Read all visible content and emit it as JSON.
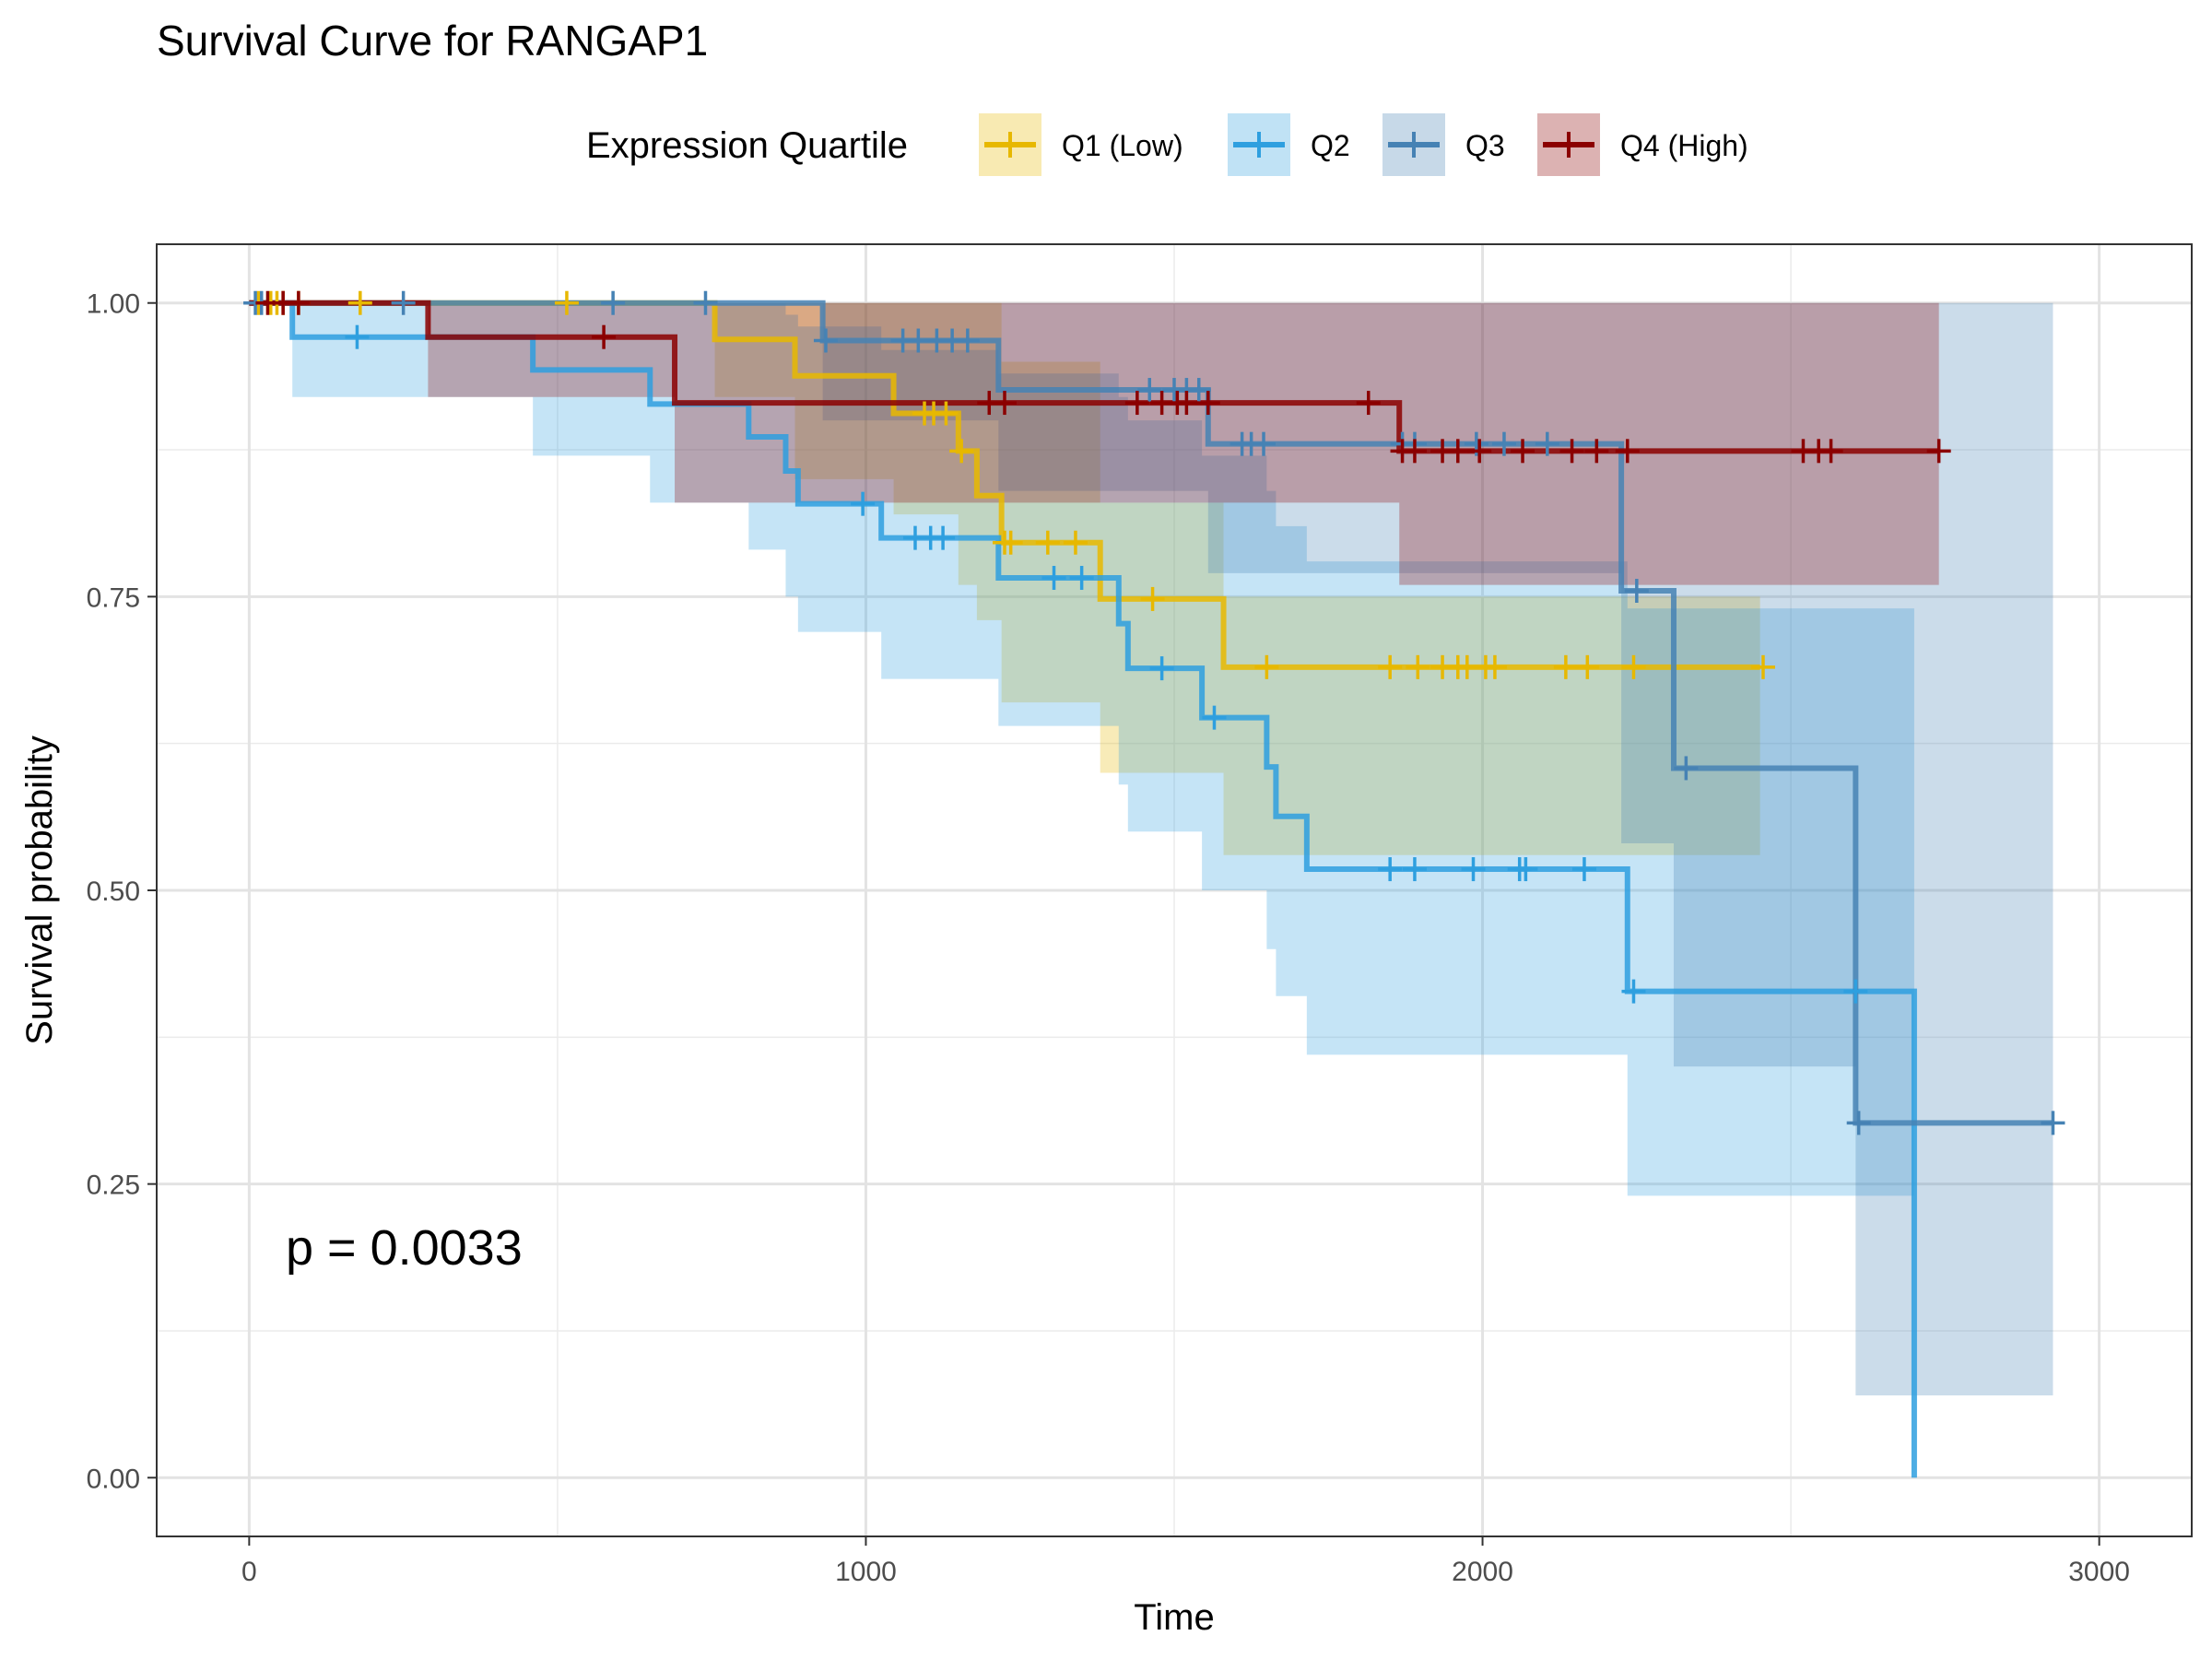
{
  "chart_data": {
    "type": "line",
    "subtype": "kaplan-meier",
    "title": "Survival Curve for RANGAP1",
    "xlabel": "Time",
    "ylabel": "Survival probability",
    "xlim": [
      -150,
      3150
    ],
    "ylim": [
      -0.05,
      1.05
    ],
    "x_ticks": [
      0,
      1000,
      2000,
      3000
    ],
    "y_ticks": [
      0.0,
      0.25,
      0.5,
      0.75,
      1.0
    ],
    "y_tick_labels": [
      "0.00",
      "0.25",
      "0.50",
      "0.75",
      "1.00"
    ],
    "grid": true,
    "legend": {
      "title": "Expression Quartile",
      "position": "top"
    },
    "annotation": "p = 0.0033",
    "series": [
      {
        "name": "Q1 (Low)",
        "color": "#E7B800",
        "curve": [
          [
            0,
            1.0
          ],
          [
            755,
            1.0
          ],
          [
            755,
            0.969
          ],
          [
            885,
            0.969
          ],
          [
            885,
            0.938
          ],
          [
            1045,
            0.938
          ],
          [
            1045,
            0.906
          ],
          [
            1150,
            0.906
          ],
          [
            1150,
            0.874
          ],
          [
            1180,
            0.874
          ],
          [
            1180,
            0.836
          ],
          [
            1220,
            0.836
          ],
          [
            1220,
            0.796
          ],
          [
            1380,
            0.796
          ],
          [
            1380,
            0.748
          ],
          [
            1580,
            0.748
          ],
          [
            1580,
            0.69
          ],
          [
            2450,
            0.69
          ]
        ],
        "upper": [
          [
            755,
            1.0
          ],
          [
            885,
            1.0
          ],
          [
            1045,
            1.0
          ],
          [
            1150,
            1.0
          ],
          [
            1180,
            1.0
          ],
          [
            1220,
            0.95
          ],
          [
            1380,
            0.83
          ],
          [
            1580,
            0.75
          ],
          [
            2450,
            0.75
          ]
        ],
        "lower": [
          [
            755,
            0.92
          ],
          [
            885,
            0.85
          ],
          [
            1045,
            0.82
          ],
          [
            1150,
            0.76
          ],
          [
            1180,
            0.73
          ],
          [
            1220,
            0.66
          ],
          [
            1380,
            0.6
          ],
          [
            1580,
            0.53
          ],
          [
            2450,
            0.53
          ]
        ],
        "censor_times": [
          15,
          35,
          45,
          55,
          80,
          180,
          515,
          1095,
          1110,
          1130,
          1155,
          1225,
          1235,
          1295,
          1340,
          1465,
          1650,
          1850,
          1895,
          1935,
          1960,
          1975,
          2005,
          2020,
          2135,
          2170,
          2245,
          2455
        ]
      },
      {
        "name": "Q2",
        "color": "#2E9FDF",
        "curve": [
          [
            0,
            1.0
          ],
          [
            70,
            1.0
          ],
          [
            70,
            0.971
          ],
          [
            460,
            0.971
          ],
          [
            460,
            0.943
          ],
          [
            650,
            0.943
          ],
          [
            650,
            0.914
          ],
          [
            810,
            0.914
          ],
          [
            810,
            0.886
          ],
          [
            870,
            0.886
          ],
          [
            870,
            0.857
          ],
          [
            890,
            0.857
          ],
          [
            890,
            0.829
          ],
          [
            1025,
            0.829
          ],
          [
            1025,
            0.8
          ],
          [
            1215,
            0.8
          ],
          [
            1215,
            0.766
          ],
          [
            1410,
            0.766
          ],
          [
            1410,
            0.727
          ],
          [
            1425,
            0.727
          ],
          [
            1425,
            0.689
          ],
          [
            1545,
            0.689
          ],
          [
            1545,
            0.647
          ],
          [
            1650,
            0.647
          ],
          [
            1650,
            0.605
          ],
          [
            1665,
            0.605
          ],
          [
            1665,
            0.563
          ],
          [
            1715,
            0.563
          ],
          [
            1715,
            0.518
          ],
          [
            2235,
            0.518
          ],
          [
            2235,
            0.414
          ],
          [
            2700,
            0.414
          ],
          [
            2700,
            0.0
          ]
        ],
        "upper": [
          [
            70,
            1.0
          ],
          [
            460,
            1.0
          ],
          [
            650,
            1.0
          ],
          [
            810,
            1.0
          ],
          [
            870,
            0.99
          ],
          [
            890,
            0.98
          ],
          [
            1025,
            0.96
          ],
          [
            1215,
            0.94
          ],
          [
            1410,
            0.92
          ],
          [
            1425,
            0.9
          ],
          [
            1545,
            0.87
          ],
          [
            1650,
            0.84
          ],
          [
            1665,
            0.81
          ],
          [
            1715,
            0.78
          ],
          [
            2235,
            0.74
          ],
          [
            2700,
            0.74
          ]
        ],
        "lower": [
          [
            70,
            0.92
          ],
          [
            460,
            0.87
          ],
          [
            650,
            0.83
          ],
          [
            810,
            0.79
          ],
          [
            870,
            0.75
          ],
          [
            890,
            0.72
          ],
          [
            1025,
            0.68
          ],
          [
            1215,
            0.64
          ],
          [
            1410,
            0.59
          ],
          [
            1425,
            0.55
          ],
          [
            1545,
            0.5
          ],
          [
            1650,
            0.45
          ],
          [
            1665,
            0.41
          ],
          [
            1715,
            0.36
          ],
          [
            2235,
            0.24
          ],
          [
            2700,
            0.24
          ]
        ],
        "censor_times": [
          175,
          995,
          1080,
          1105,
          1125,
          1305,
          1350,
          1480,
          1565,
          1850,
          1890,
          1985,
          2060,
          2070,
          2165,
          2245,
          2605
        ]
      },
      {
        "name": "Q3",
        "color": "#4682B4",
        "curve": [
          [
            0,
            1.0
          ],
          [
            930,
            1.0
          ],
          [
            930,
            0.968
          ],
          [
            1215,
            0.968
          ],
          [
            1215,
            0.926
          ],
          [
            1555,
            0.926
          ],
          [
            1555,
            0.88
          ],
          [
            2225,
            0.88
          ],
          [
            2225,
            0.755
          ],
          [
            2310,
            0.755
          ],
          [
            2310,
            0.604
          ],
          [
            2605,
            0.604
          ],
          [
            2605,
            0.302
          ],
          [
            2925,
            0.302
          ]
        ],
        "upper": [
          [
            930,
            1.0
          ],
          [
            1215,
            1.0
          ],
          [
            1555,
            1.0
          ],
          [
            2225,
            1.0
          ],
          [
            2310,
            1.0
          ],
          [
            2605,
            1.0
          ],
          [
            2925,
            1.0
          ]
        ],
        "lower": [
          [
            930,
            0.9
          ],
          [
            1215,
            0.84
          ],
          [
            1555,
            0.77
          ],
          [
            2225,
            0.54
          ],
          [
            2310,
            0.35
          ],
          [
            2605,
            0.07
          ],
          [
            2925,
            0.07
          ]
        ],
        "censor_times": [
          10,
          20,
          250,
          590,
          740,
          935,
          1060,
          1085,
          1115,
          1140,
          1165,
          1460,
          1500,
          1520,
          1540,
          1610,
          1625,
          1645,
          1870,
          1890,
          1990,
          2035,
          2105,
          2250,
          2330,
          2610,
          2925
        ]
      },
      {
        "name": "Q4 (High)",
        "color": "#8B0000",
        "curve": [
          [
            0,
            1.0
          ],
          [
            290,
            1.0
          ],
          [
            290,
            0.971
          ],
          [
            690,
            0.971
          ],
          [
            690,
            0.915
          ],
          [
            1865,
            0.915
          ],
          [
            1865,
            0.874
          ],
          [
            2740,
            0.874
          ]
        ],
        "upper": [
          [
            290,
            1.0
          ],
          [
            690,
            1.0
          ],
          [
            1865,
            1.0
          ],
          [
            2740,
            1.0
          ]
        ],
        "lower": [
          [
            290,
            0.92
          ],
          [
            690,
            0.83
          ],
          [
            1865,
            0.76
          ],
          [
            2740,
            0.76
          ]
        ],
        "censor_times": [
          30,
          55,
          80,
          575,
          1200,
          1225,
          1440,
          1480,
          1505,
          1520,
          1555,
          1815,
          1870,
          1890,
          1935,
          1960,
          1995,
          2065,
          2145,
          2185,
          2235,
          2520,
          2545,
          2565,
          2740
        ]
      }
    ]
  }
}
